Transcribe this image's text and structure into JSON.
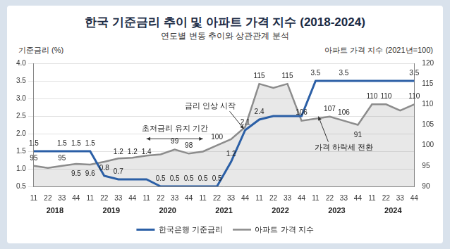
{
  "chart_data": {
    "type": "line",
    "title": "한국 기준금리 추이 및 아파트 가격 지수 (2018-2024)",
    "subtitle": "연도별 변동 추이와 상관관계 분석",
    "y_label": "기준금리 (%)",
    "y2_label": "아파트 가격 지수 (2021년=100)",
    "categories": [
      "11",
      "22",
      "33",
      "44",
      "11",
      "22",
      "33",
      "44",
      "11",
      "22",
      "33",
      "44",
      "11",
      "22",
      "33",
      "44",
      "11",
      "22",
      "33",
      "44",
      "11",
      "22",
      "33",
      "44",
      "11",
      "22",
      "33",
      "44"
    ],
    "years": [
      "2018",
      "2019",
      "2020",
      "2021",
      "2022",
      "2023",
      "2024"
    ],
    "series": [
      {
        "name": "한국은행 기준금리",
        "color": "#2b5fa6",
        "values": [
          1.5,
          1.5,
          1.5,
          1.5,
          1.5,
          0.8,
          0.7,
          0.7,
          0.7,
          0.5,
          0.5,
          0.5,
          0.5,
          0.5,
          1.2,
          2.1,
          2.4,
          2.5,
          2.5,
          2.5,
          3.5,
          3.5,
          3.5,
          3.5,
          3.5,
          3.5,
          3.5,
          3.5
        ],
        "value_labels": [
          "1.5",
          null,
          "1.5",
          "1.5",
          "1.5",
          "0.8",
          "0.7",
          null,
          null,
          "0.5",
          "0.5",
          "0.5",
          "0.5",
          "0.5",
          "1.2",
          "2.1",
          "2.4",
          null,
          null,
          null,
          "3.5",
          null,
          "3.5",
          null,
          null,
          null,
          null,
          "3.5"
        ]
      },
      {
        "name": "아파트 가격 지수",
        "color": "#8c8c8c",
        "axis": "y2",
        "values": [
          95,
          94.5,
          95,
          95.5,
          95.3,
          96,
          96.8,
          97,
          97.5,
          97.8,
          99,
          98,
          98.5,
          100,
          101.5,
          104.5,
          115,
          114,
          115,
          106,
          106.5,
          107,
          106,
          105,
          110,
          110,
          108.5,
          110
        ],
        "value_labels": [
          "95",
          null,
          "95",
          null,
          null,
          null,
          null,
          null,
          null,
          null,
          "99",
          "98",
          null,
          "100",
          null,
          null,
          "115",
          null,
          "115",
          "106",
          null,
          "107",
          "106",
          null,
          "110",
          "110",
          null,
          "110"
        ]
      }
    ],
    "ylim": [
      0.5,
      4.0
    ],
    "yticks": [
      0.5,
      {
        "value": 1.0,
        "label": "1.0"
      },
      1.5,
      {
        "value": 2.0,
        "label": "2.0"
      },
      2.5,
      {
        "value": 3.0,
        "label": "3.0"
      },
      3.5,
      {
        "value": 4.0,
        "label": "4.0"
      }
    ],
    "y2lim": [
      90,
      120
    ],
    "y2ticks": [
      90,
      95,
      100,
      105,
      110,
      115,
      120
    ],
    "grid": true,
    "legend": "bottom",
    "data_labels": true,
    "annotations": [
      {
        "text": "초저금리 유지 기간",
        "x": 10,
        "y": 104
      },
      {
        "text": "금리 인상 시작",
        "x": 12.5,
        "y": 109.5
      },
      {
        "text": "가격 하락세 전환",
        "x": 22,
        "y": 99.5
      },
      {
        "text": "9.5",
        "x": 3,
        "y": 93
      },
      {
        "text": "9.6",
        "x": 4,
        "y": 93
      },
      {
        "text": "1.2",
        "x": 6,
        "y": 98.3
      },
      {
        "text": "1.2",
        "x": 7,
        "y": 98.3
      },
      {
        "text": "1.4",
        "x": 8,
        "y": 98.3
      },
      {
        "text": "91",
        "x": 23,
        "y": 102.5
      }
    ]
  }
}
